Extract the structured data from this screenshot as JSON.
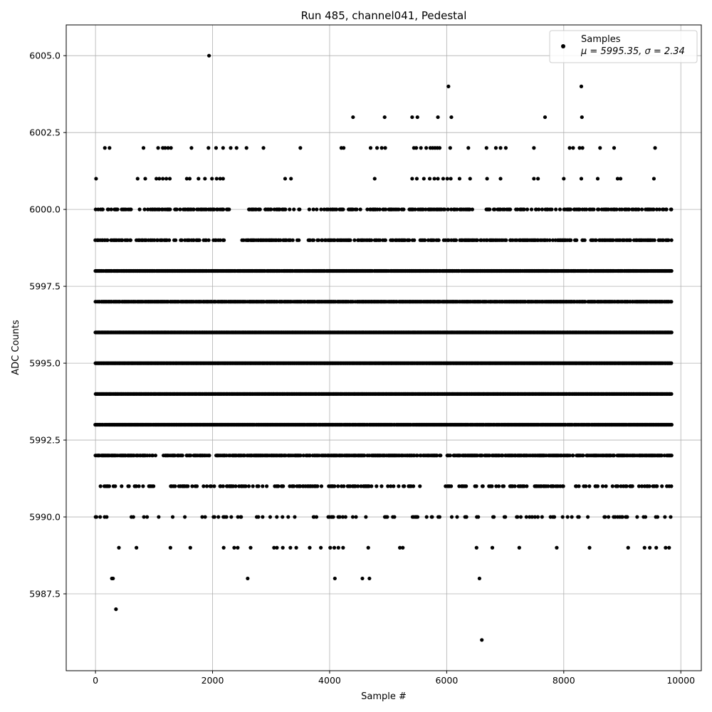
{
  "chart_data": {
    "type": "scatter",
    "title": "Run 485, channel041, Pedestal",
    "xlabel": "Sample #",
    "ylabel": "ADC Counts",
    "xlim": [
      -500,
      10350
    ],
    "ylim": [
      5985.0,
      6006.0
    ],
    "xticks": [
      0,
      2000,
      4000,
      6000,
      8000,
      10000
    ],
    "xtick_labels": [
      "0",
      "2000",
      "4000",
      "6000",
      "8000",
      "10000"
    ],
    "yticks": [
      5987.5,
      5990.0,
      5992.5,
      5995.0,
      5997.5,
      6000.0,
      6002.5,
      6005.0
    ],
    "ytick_labels": [
      "5987.5",
      "5990.0",
      "5992.5",
      "5995.0",
      "5997.5",
      "6000.0",
      "6002.5",
      "6005.0"
    ],
    "grid": true,
    "legend_position": "top-right",
    "legend": {
      "series_name": "Samples",
      "stats_line": "μ = 5995.35, σ = 2.34"
    },
    "colors": {
      "marker": "#000000",
      "grid": "#b0b0b0"
    },
    "sample_count_range": [
      0,
      9850
    ],
    "mean": 5995.35,
    "sigma": 2.34,
    "levels": [
      {
        "y": 6005,
        "x": [
          1940
        ]
      },
      {
        "y": 6004,
        "x": [
          6030,
          8300
        ]
      },
      {
        "y": 6003,
        "x": [
          4400,
          4940,
          5410,
          5500,
          5850,
          6080,
          7680,
          8310
        ]
      },
      {
        "y": 6002,
        "x": [
          160,
          240,
          820,
          1070,
          1150,
          1190,
          1240,
          1290,
          1640,
          1930,
          2060,
          2180,
          2310,
          2410,
          2580,
          2870,
          3500,
          4200,
          4240,
          4700,
          4810,
          4890,
          4950,
          5440,
          5480,
          5560,
          5650,
          5720,
          5760,
          5800,
          5840,
          5880,
          6060,
          6370,
          6680,
          6840,
          6920,
          7010,
          7490,
          8100,
          8160,
          8270,
          8320,
          8620,
          8860,
          9560
        ]
      },
      {
        "y": 6001,
        "x": [
          10,
          720,
          850,
          1040,
          1090,
          1150,
          1210,
          1270,
          1560,
          1610,
          1760,
          1870,
          1990,
          2070,
          2130,
          2180,
          3240,
          3340,
          4770,
          5410,
          5490,
          5610,
          5710,
          5790,
          5850,
          5940,
          6010,
          6070,
          6220,
          6400,
          6690,
          6920,
          7490,
          7560,
          8000,
          8300,
          8580,
          8920,
          8970,
          9540
        ]
      },
      {
        "y": 5989,
        "x": [
          400,
          700,
          1280,
          1620,
          2190,
          2370,
          2430,
          2650,
          3050,
          3100,
          3200,
          3330,
          3430,
          3660,
          3850,
          4010,
          4080,
          4150,
          4230,
          4660,
          5200,
          5250,
          6510,
          6780,
          7240,
          7880,
          8440,
          9100,
          9380,
          9470,
          9580,
          9740,
          9800
        ]
      },
      {
        "y": 5988,
        "x": [
          280,
          300,
          2600,
          4090,
          4560,
          4680,
          6560
        ]
      },
      {
        "y": 5987,
        "x": [
          350
        ]
      },
      {
        "y": 5986,
        "x": [
          6600
        ]
      }
    ],
    "dense_levels": [
      {
        "y": 6000,
        "density": 0.45,
        "gaps": [
          [
            2300,
            2600
          ],
          [
            3500,
            3600
          ],
          [
            6500,
            6600
          ]
        ]
      },
      {
        "y": 5999,
        "density": 0.55,
        "gaps": [
          [
            2200,
            2500
          ],
          [
            3500,
            3600
          ]
        ]
      },
      {
        "y": 5998,
        "density": 0.95,
        "gaps": []
      },
      {
        "y": 5997,
        "density": 0.92,
        "gaps": []
      },
      {
        "y": 5996,
        "density": 1.0,
        "gaps": []
      },
      {
        "y": 5995,
        "density": 1.0,
        "gaps": []
      },
      {
        "y": 5994,
        "density": 1.0,
        "gaps": []
      },
      {
        "y": 5993,
        "density": 0.95,
        "gaps": []
      },
      {
        "y": 5992,
        "density": 0.72,
        "gaps": [
          [
            1050,
            1150
          ],
          [
            1950,
            2050
          ],
          [
            5900,
            6000
          ]
        ]
      },
      {
        "y": 5991,
        "density": 0.35,
        "gaps": [
          [
            1000,
            1250
          ],
          [
            5600,
            5950
          ],
          [
            8000,
            8200
          ]
        ]
      },
      {
        "y": 5990,
        "density": 0.14,
        "gaps": []
      }
    ]
  }
}
